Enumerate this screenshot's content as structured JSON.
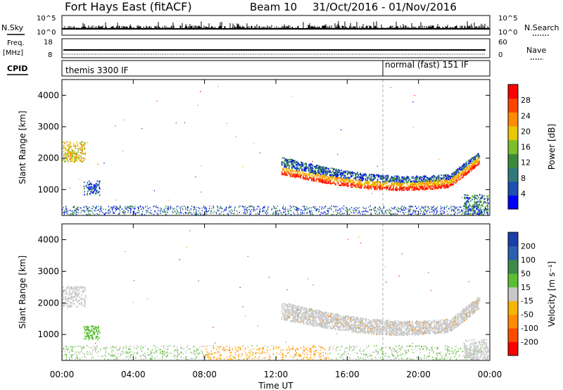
{
  "header": {
    "title": "Fort Hays East (fitACF)",
    "beam": "Beam 10",
    "dates": "31/Oct/2016 - 01/Nov/2016"
  },
  "strips": {
    "nsky_label": "N.Sky",
    "nsearch_label": "N.Search",
    "nsky_ticks": [
      "10^5",
      "10^0"
    ],
    "nsearch_ticks": [
      "10^5",
      "10^0"
    ],
    "freq_label_1": "Freq.",
    "freq_label_2": "[MHz]",
    "freq_ticks": [
      "18",
      "8"
    ],
    "nave_label": "Nave",
    "nave_ticks": [
      "60",
      "0"
    ],
    "cpid_label": "CPID",
    "cpid_1": "themis 3300 IF",
    "cpid_2": "normal (fast) 151 IF",
    "cpid_switch_hour": 18
  },
  "panels": {
    "ylabel": "Slant Range [km]",
    "xlabel": "Time UT",
    "y_ticks": [
      "1000",
      "2000",
      "3000",
      "4000"
    ],
    "x_ticks": [
      "00:00",
      "04:00",
      "08:00",
      "12:00",
      "16:00",
      "20:00",
      "00:00"
    ],
    "power_label": "Power [dB]",
    "power_ticks": [
      "4",
      "8",
      "12",
      "16",
      "20",
      "24",
      "28"
    ],
    "velocity_label": "Velocity [m s⁻¹]",
    "velocity_ticks": [
      "200",
      "100",
      "50",
      "15",
      "-15",
      "-50",
      "-100",
      "-200"
    ]
  },
  "colors": {
    "power_scale": [
      "#0000ff",
      "#1f4fb0",
      "#2e7a7a",
      "#3a8a3a",
      "#7bbf2a",
      "#e8c800",
      "#ff8c00",
      "#ff4500",
      "#ff0000"
    ],
    "velocity_scale": [
      "#1b3fa8",
      "#2d5fb0",
      "#3f8a4a",
      "#5bbf33",
      "#c8c8c8",
      "#f7b500",
      "#ff8c00",
      "#ff4a00",
      "#ff0000"
    ]
  },
  "chart_data": [
    {
      "type": "scatter",
      "title": "Power",
      "xlabel": "Time UT",
      "ylabel": "Slant Range [km]",
      "xlim": [
        0,
        24
      ],
      "ylim": [
        180,
        4500
      ],
      "colorbar": {
        "label": "Power [dB]",
        "ticks": [
          4,
          8,
          12,
          16,
          20,
          24,
          28
        ]
      },
      "regions": [
        {
          "name": "near-range",
          "x": [
            0,
            23.8
          ],
          "y": [
            200,
            500
          ]
        },
        {
          "name": "early-patch",
          "x": [
            0,
            1.3
          ],
          "y": [
            1900,
            2600
          ]
        },
        {
          "name": "patch-2",
          "x": [
            1.2,
            2.1
          ],
          "y": [
            850,
            1300
          ]
        },
        {
          "name": "evening-band",
          "x": [
            12.3,
            23.5
          ],
          "y": [
            900,
            1900
          ]
        },
        {
          "name": "late-near",
          "x": [
            22.5,
            24
          ],
          "y": [
            200,
            900
          ]
        }
      ]
    },
    {
      "type": "scatter",
      "title": "Velocity",
      "xlabel": "Time UT",
      "ylabel": "Slant Range [km]",
      "xlim": [
        0,
        24
      ],
      "ylim": [
        180,
        4500
      ],
      "colorbar": {
        "label": "Velocity [m s⁻¹]",
        "ticks": [
          200,
          100,
          50,
          15,
          -15,
          -50,
          -100,
          -200
        ]
      },
      "regions": [
        {
          "name": "near-range",
          "x": [
            0,
            23.8
          ],
          "y": [
            200,
            700
          ]
        },
        {
          "name": "early-patch",
          "x": [
            0,
            1.3
          ],
          "y": [
            1900,
            2500
          ]
        },
        {
          "name": "patch-2",
          "x": [
            1.2,
            2.1
          ],
          "y": [
            800,
            1300
          ]
        },
        {
          "name": "evening-band",
          "x": [
            12.3,
            23.5
          ],
          "y": [
            850,
            1950
          ]
        }
      ]
    }
  ]
}
